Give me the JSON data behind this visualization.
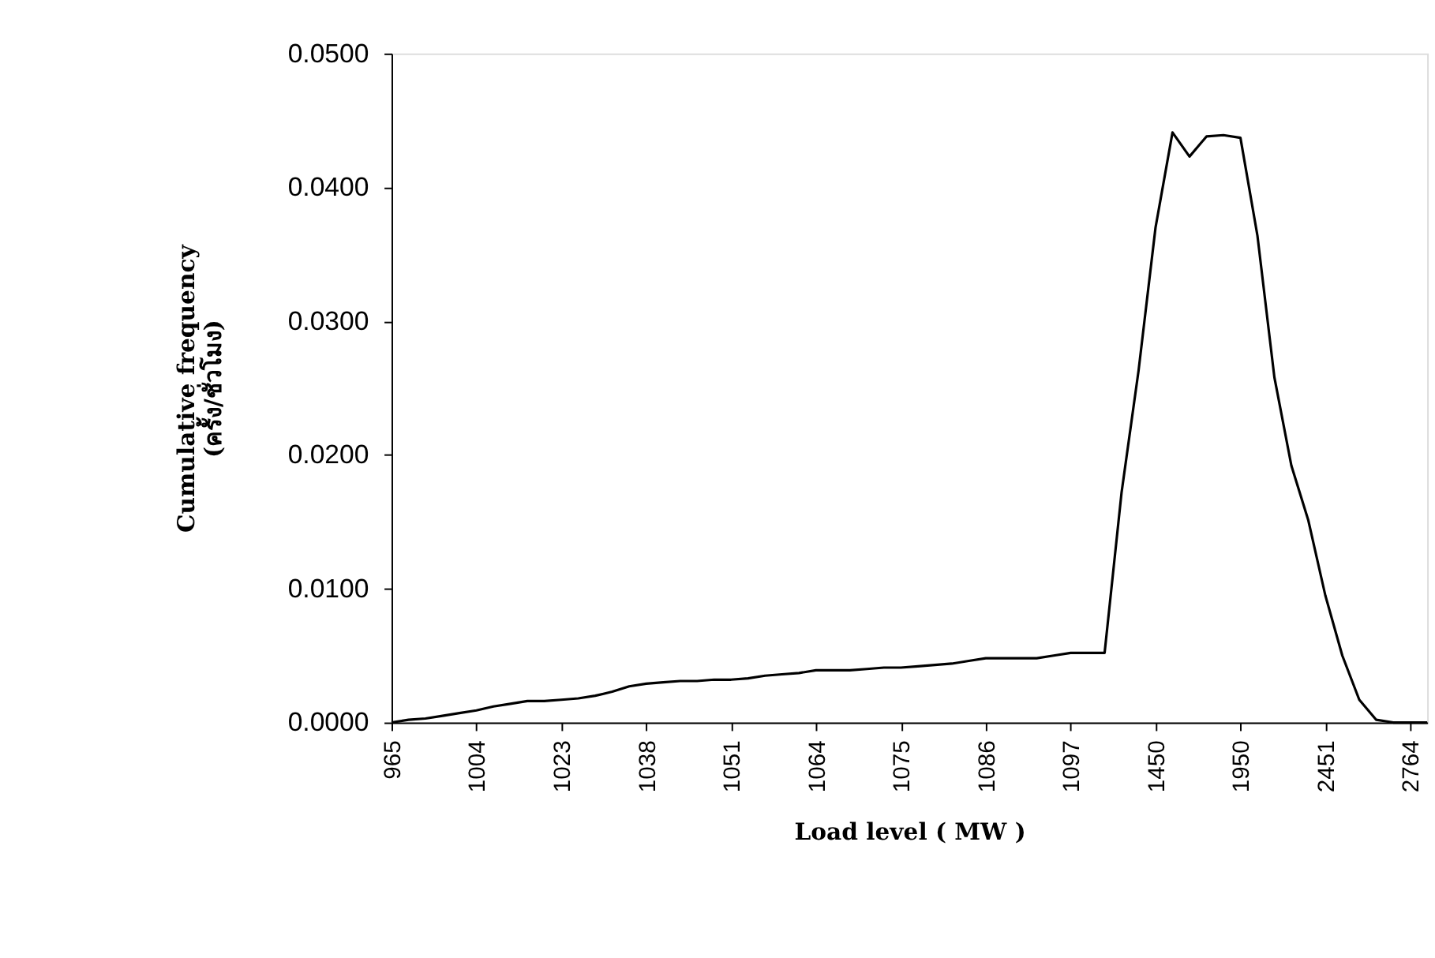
{
  "chart_data": {
    "type": "line",
    "xlabel": "Load level ( MW )",
    "ylabel": "Cumulative frequency\n(ครั้ง/ชั่วโมง)",
    "categories": [
      "965",
      null,
      null,
      null,
      null,
      "1004",
      null,
      null,
      null,
      null,
      "1023",
      null,
      null,
      null,
      null,
      "1038",
      null,
      null,
      null,
      null,
      "1051",
      null,
      null,
      null,
      null,
      "1064",
      null,
      null,
      null,
      null,
      "1075",
      null,
      null,
      null,
      null,
      "1086",
      null,
      null,
      null,
      null,
      "1097",
      null,
      null,
      null,
      null,
      "1450",
      null,
      null,
      null,
      null,
      "1950",
      null,
      null,
      null,
      null,
      "2451",
      null,
      null,
      null,
      null,
      "2764",
      null
    ],
    "series": [
      {
        "color": "#000000",
        "values": [
          0,
          0.0002,
          0.0003,
          0.0005,
          0.0007,
          0.0009,
          0.0012,
          0.0014,
          0.0016,
          0.0016,
          0.0017,
          0.0018,
          0.002,
          0.0023,
          0.0027,
          0.0029,
          0.003,
          0.0031,
          0.0031,
          0.0032,
          0.0032,
          0.0033,
          0.0035,
          0.0036,
          0.0037,
          0.0039,
          0.0039,
          0.0039,
          0.004,
          0.0041,
          0.0041,
          0.0042,
          0.0043,
          0.0044,
          0.0046,
          0.0048,
          0.0048,
          0.0048,
          0.0048,
          0.005,
          0.0052,
          0.0052,
          0.0052,
          0.0172,
          0.0263,
          0.037,
          0.0441,
          0.0423,
          0.0438,
          0.0439,
          0.0437,
          0.0364,
          0.0258,
          0.0192,
          0.0151,
          0.0095,
          0.005,
          0.0017,
          0.0002,
          0,
          0,
          0
        ]
      }
    ],
    "ylim": [
      0,
      0.05
    ],
    "yticks": [
      {
        "value": 0,
        "label": "0.0000"
      },
      {
        "value": 0.01,
        "label": "0.0100"
      },
      {
        "value": 0.02,
        "label": "0.0200"
      },
      {
        "value": 0.03,
        "label": "0.0300"
      },
      {
        "value": 0.04,
        "label": "0.0400"
      },
      {
        "value": 0.05,
        "label": "0.0500"
      }
    ],
    "grid": false,
    "marker": "none",
    "line_style": "solid"
  }
}
